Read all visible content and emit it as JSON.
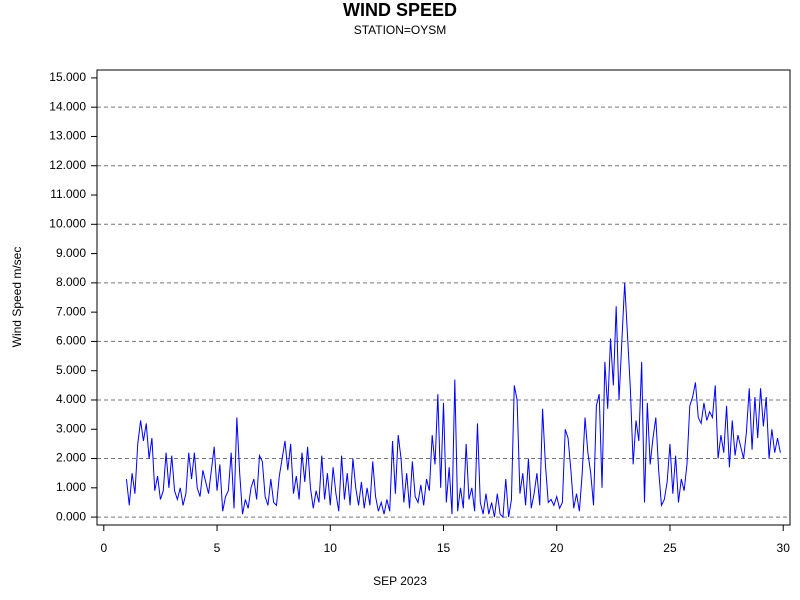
{
  "chart_data": {
    "type": "line",
    "title": "WIND SPEED",
    "subtitle": "STATION=OYSM",
    "x_label": "SEP 2023",
    "y_label": "Wind Speed m/sec",
    "color": "#0000ff",
    "grid": true,
    "grid_style": "dashed",
    "xlim": [
      -0.3,
      30.3
    ],
    "xticks": [
      0,
      5,
      10,
      15,
      20,
      25,
      30
    ],
    "ylim": [
      -0.27,
      15.27
    ],
    "yticks": [
      {
        "value": 0,
        "label": "0.000"
      },
      {
        "value": 1,
        "label": "1.000"
      },
      {
        "value": 2,
        "label": "2.000"
      },
      {
        "value": 3,
        "label": "3.000"
      },
      {
        "value": 4,
        "label": "4.000"
      },
      {
        "value": 5,
        "label": "5.000"
      },
      {
        "value": 6,
        "label": "6.000"
      },
      {
        "value": 7,
        "label": "7.000"
      },
      {
        "value": 8,
        "label": "8.000"
      },
      {
        "value": 9,
        "label": "9.000"
      },
      {
        "value": 10,
        "label": "10.000"
      },
      {
        "value": 11,
        "label": "11.000"
      },
      {
        "value": 12,
        "label": "12.000"
      },
      {
        "value": 13,
        "label": "13.000"
      },
      {
        "value": 14,
        "label": "14.000"
      },
      {
        "value": 15,
        "label": "15.000"
      }
    ],
    "ygrid": [
      0,
      2,
      4,
      6,
      8,
      10,
      12,
      14
    ],
    "x": [
      1,
      1.125,
      1.25,
      1.375,
      1.5,
      1.625,
      1.75,
      1.875,
      2,
      2.125,
      2.25,
      2.375,
      2.5,
      2.625,
      2.75,
      2.875,
      3,
      3.125,
      3.25,
      3.375,
      3.5,
      3.625,
      3.75,
      3.875,
      4,
      4.125,
      4.25,
      4.375,
      4.5,
      4.625,
      4.75,
      4.875,
      5,
      5.125,
      5.25,
      5.375,
      5.5,
      5.625,
      5.75,
      5.875,
      6,
      6.125,
      6.25,
      6.375,
      6.5,
      6.625,
      6.75,
      6.875,
      7,
      7.125,
      7.25,
      7.375,
      7.5,
      7.625,
      7.75,
      7.875,
      8,
      8.125,
      8.25,
      8.375,
      8.5,
      8.625,
      8.75,
      8.875,
      9,
      9.125,
      9.25,
      9.375,
      9.5,
      9.625,
      9.75,
      9.875,
      10,
      10.125,
      10.25,
      10.375,
      10.5,
      10.625,
      10.75,
      10.875,
      11,
      11.125,
      11.25,
      11.375,
      11.5,
      11.625,
      11.75,
      11.875,
      12,
      12.125,
      12.25,
      12.375,
      12.5,
      12.625,
      12.75,
      12.875,
      13,
      13.125,
      13.25,
      13.375,
      13.5,
      13.625,
      13.75,
      13.875,
      14,
      14.125,
      14.25,
      14.375,
      14.5,
      14.625,
      14.75,
      14.875,
      15,
      15.125,
      15.25,
      15.375,
      15.5,
      15.625,
      15.75,
      15.875,
      16,
      16.125,
      16.25,
      16.375,
      16.5,
      16.625,
      16.75,
      16.875,
      17,
      17.125,
      17.25,
      17.375,
      17.5,
      17.625,
      17.75,
      17.875,
      18,
      18.125,
      18.25,
      18.375,
      18.5,
      18.625,
      18.75,
      18.875,
      19,
      19.125,
      19.25,
      19.375,
      19.5,
      19.625,
      19.75,
      19.875,
      20,
      20.125,
      20.25,
      20.375,
      20.5,
      20.625,
      20.75,
      20.875,
      21,
      21.125,
      21.25,
      21.375,
      21.5,
      21.625,
      21.75,
      21.875,
      22,
      22.125,
      22.25,
      22.375,
      22.5,
      22.625,
      22.75,
      22.875,
      23,
      23.125,
      23.25,
      23.375,
      23.5,
      23.625,
      23.75,
      23.875,
      24,
      24.125,
      24.25,
      24.375,
      24.5,
      24.625,
      24.75,
      24.875,
      25,
      25.125,
      25.25,
      25.375,
      25.5,
      25.625,
      25.75,
      25.875,
      26,
      26.125,
      26.25,
      26.375,
      26.5,
      26.625,
      26.75,
      26.875,
      27,
      27.125,
      27.25,
      27.375,
      27.5,
      27.625,
      27.75,
      27.875,
      28,
      28.125,
      28.25,
      28.375,
      28.5,
      28.625,
      28.75,
      28.875,
      29,
      29.125,
      29.25,
      29.375,
      29.5,
      29.625,
      29.75,
      29.875
    ],
    "values": [
      1.3,
      0.4,
      1.5,
      0.8,
      2.5,
      3.3,
      2.6,
      3.2,
      2.0,
      2.7,
      0.9,
      1.4,
      0.6,
      0.9,
      2.2,
      1.0,
      2.1,
      0.9,
      0.6,
      1.0,
      0.4,
      0.8,
      2.2,
      1.3,
      2.2,
      1.0,
      0.7,
      1.6,
      1.2,
      0.8,
      1.6,
      2.4,
      0.9,
      1.8,
      0.2,
      0.7,
      0.9,
      2.2,
      0.3,
      3.4,
      1.5,
      0.1,
      0.6,
      0.3,
      1.0,
      1.3,
      0.6,
      2.1,
      1.9,
      0.7,
      0.4,
      1.3,
      0.5,
      0.4,
      1.4,
      2.0,
      2.6,
      1.6,
      2.5,
      0.8,
      1.4,
      0.6,
      2.2,
      1.2,
      2.4,
      1.0,
      0.3,
      0.9,
      0.5,
      2.1,
      0.6,
      1.5,
      0.4,
      1.7,
      0.8,
      0.2,
      2.1,
      0.6,
      1.5,
      0.4,
      2.0,
      1.0,
      0.4,
      1.2,
      0.3,
      1.0,
      0.4,
      1.9,
      0.7,
      0.2,
      0.5,
      0.1,
      0.6,
      0.2,
      2.6,
      0.8,
      2.8,
      2.0,
      0.5,
      1.5,
      0.3,
      1.9,
      0.7,
      0.5,
      1.1,
      0.4,
      1.3,
      0.9,
      2.8,
      1.8,
      4.2,
      1.0,
      3.9,
      0.5,
      1.7,
      0.1,
      4.7,
      0.2,
      1.0,
      0.3,
      2.5,
      0.6,
      1.0,
      0.2,
      3.2,
      0.5,
      0.1,
      0.8,
      0.1,
      0.5,
      0.0,
      0.8,
      0.1,
      0.0,
      1.3,
      0.0,
      0.6,
      4.5,
      4.0,
      0.8,
      1.5,
      0.4,
      2.0,
      0.3,
      0.8,
      1.5,
      0.4,
      3.7,
      1.8,
      0.5,
      0.6,
      0.4,
      0.7,
      0.3,
      0.5,
      3.0,
      2.7,
      1.6,
      0.3,
      0.8,
      0.2,
      1.5,
      3.4,
      2.2,
      1.5,
      0.4,
      3.8,
      4.2,
      1.0,
      5.3,
      3.7,
      6.1,
      4.5,
      7.2,
      4.0,
      6.0,
      8.0,
      6.2,
      4.4,
      1.8,
      3.3,
      2.6,
      5.3,
      0.5,
      3.9,
      1.8,
      2.7,
      3.4,
      1.6,
      0.4,
      0.6,
      1.2,
      2.5,
      0.8,
      2.1,
      0.5,
      1.3,
      0.9,
      1.8,
      3.8,
      4.1,
      4.6,
      3.4,
      3.2,
      3.9,
      3.3,
      3.6,
      3.4,
      4.5,
      2.0,
      2.8,
      2.2,
      3.8,
      1.7,
      3.3,
      2.1,
      2.8,
      2.4,
      2.0,
      2.9,
      4.4,
      2.3,
      4.1,
      2.7,
      4.4,
      3.1,
      4.1,
      2.0,
      3.0,
      2.2,
      2.7,
      2.2
    ]
  }
}
